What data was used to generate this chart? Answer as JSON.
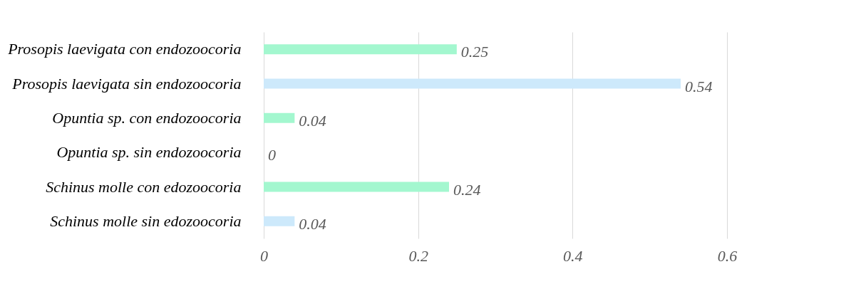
{
  "chart_data": {
    "type": "bar",
    "orientation": "horizontal",
    "categories": [
      "Prosopis laevigata con endozoocoria",
      "Prosopis laevigata sin endozoocoria",
      "Opuntia sp. con endozoocoria",
      "Opuntia sp. sin endozoocoria",
      "Schinus molle con edozoocoria",
      "Schinus molle sin edozoocoria"
    ],
    "values": [
      0.25,
      0.54,
      0.04,
      0,
      0.24,
      0.04
    ],
    "colors": [
      "#a3f7cf",
      "#cde9fb",
      "#a3f7cf",
      "#cde9fb",
      "#a3f7cf",
      "#cde9fb"
    ],
    "xlim": [
      0,
      0.6
    ],
    "xticks": [
      0,
      0.2,
      0.4,
      0.6
    ],
    "grid": "x",
    "data_labels": true
  }
}
